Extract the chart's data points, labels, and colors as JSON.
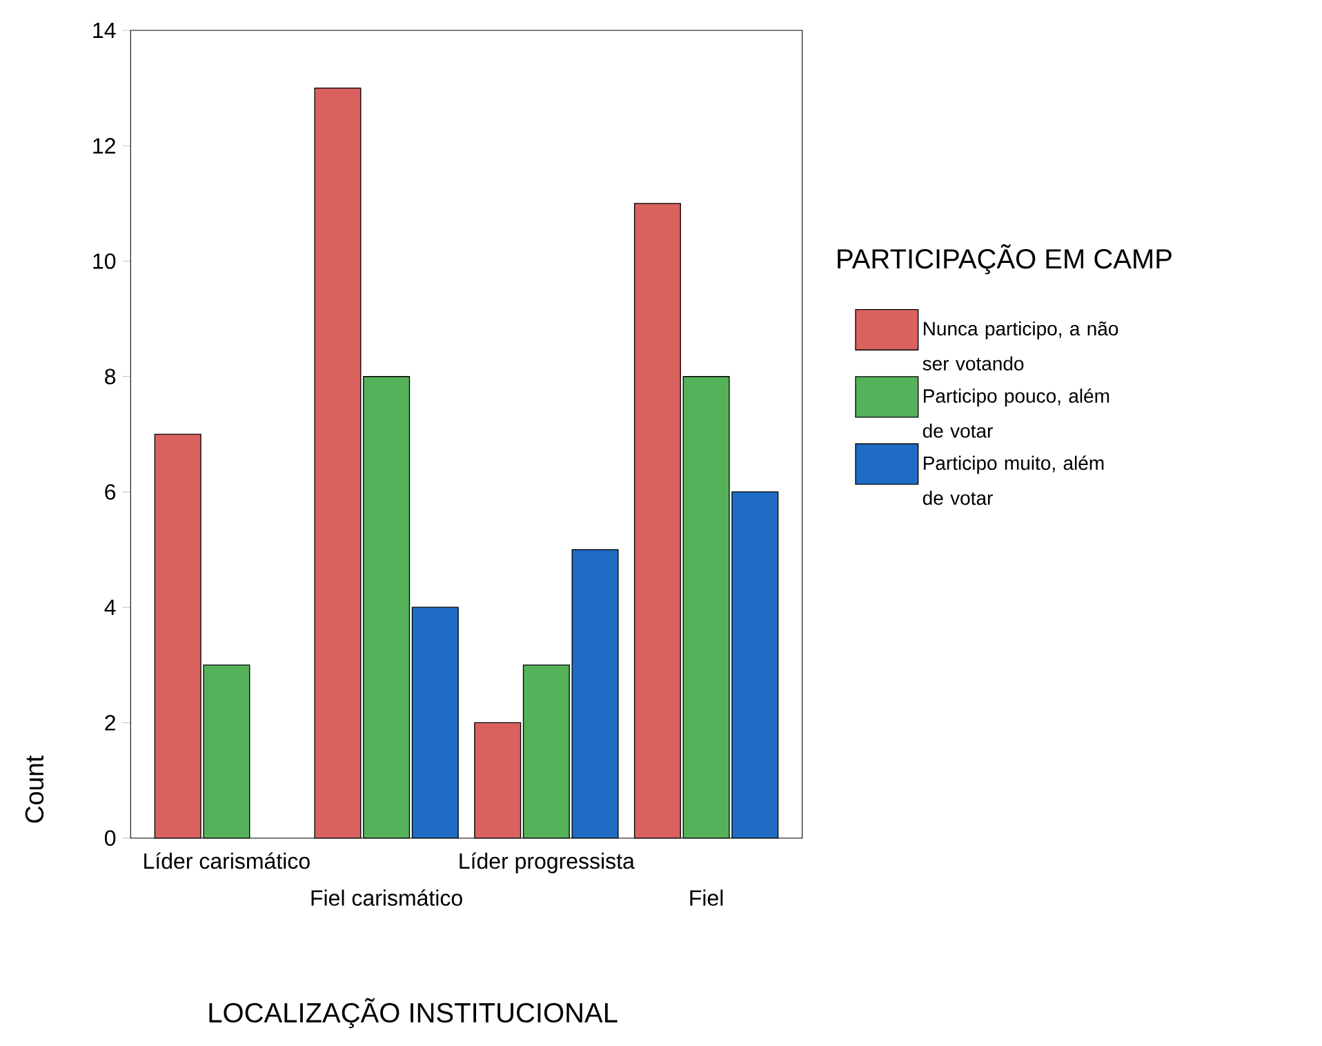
{
  "chart_data": {
    "type": "bar",
    "categories": [
      "Líder carismático",
      "Fiel carismático",
      "Líder progressista",
      "Fiel"
    ],
    "series": [
      {
        "name": "Nunca participo, a não ser votando",
        "color": "#d9625f",
        "values": [
          7,
          13,
          2,
          11
        ]
      },
      {
        "name": "Participo pouco, além de votar",
        "color": "#55b25b",
        "values": [
          3,
          8,
          3,
          8
        ]
      },
      {
        "name": "Participo muito, além de votar",
        "color": "#1f6cc4",
        "values": [
          null,
          4,
          5,
          6
        ]
      }
    ],
    "xlabel": "LOCALIZAÇÃO INSTITUCIONAL",
    "ylabel": "Count",
    "legend_title": "PARTICIPAÇÃO EM CAMP",
    "legend": "right",
    "ylim": [
      0,
      14
    ],
    "yticks": [
      0,
      2,
      4,
      6,
      8,
      10,
      12,
      14
    ]
  }
}
